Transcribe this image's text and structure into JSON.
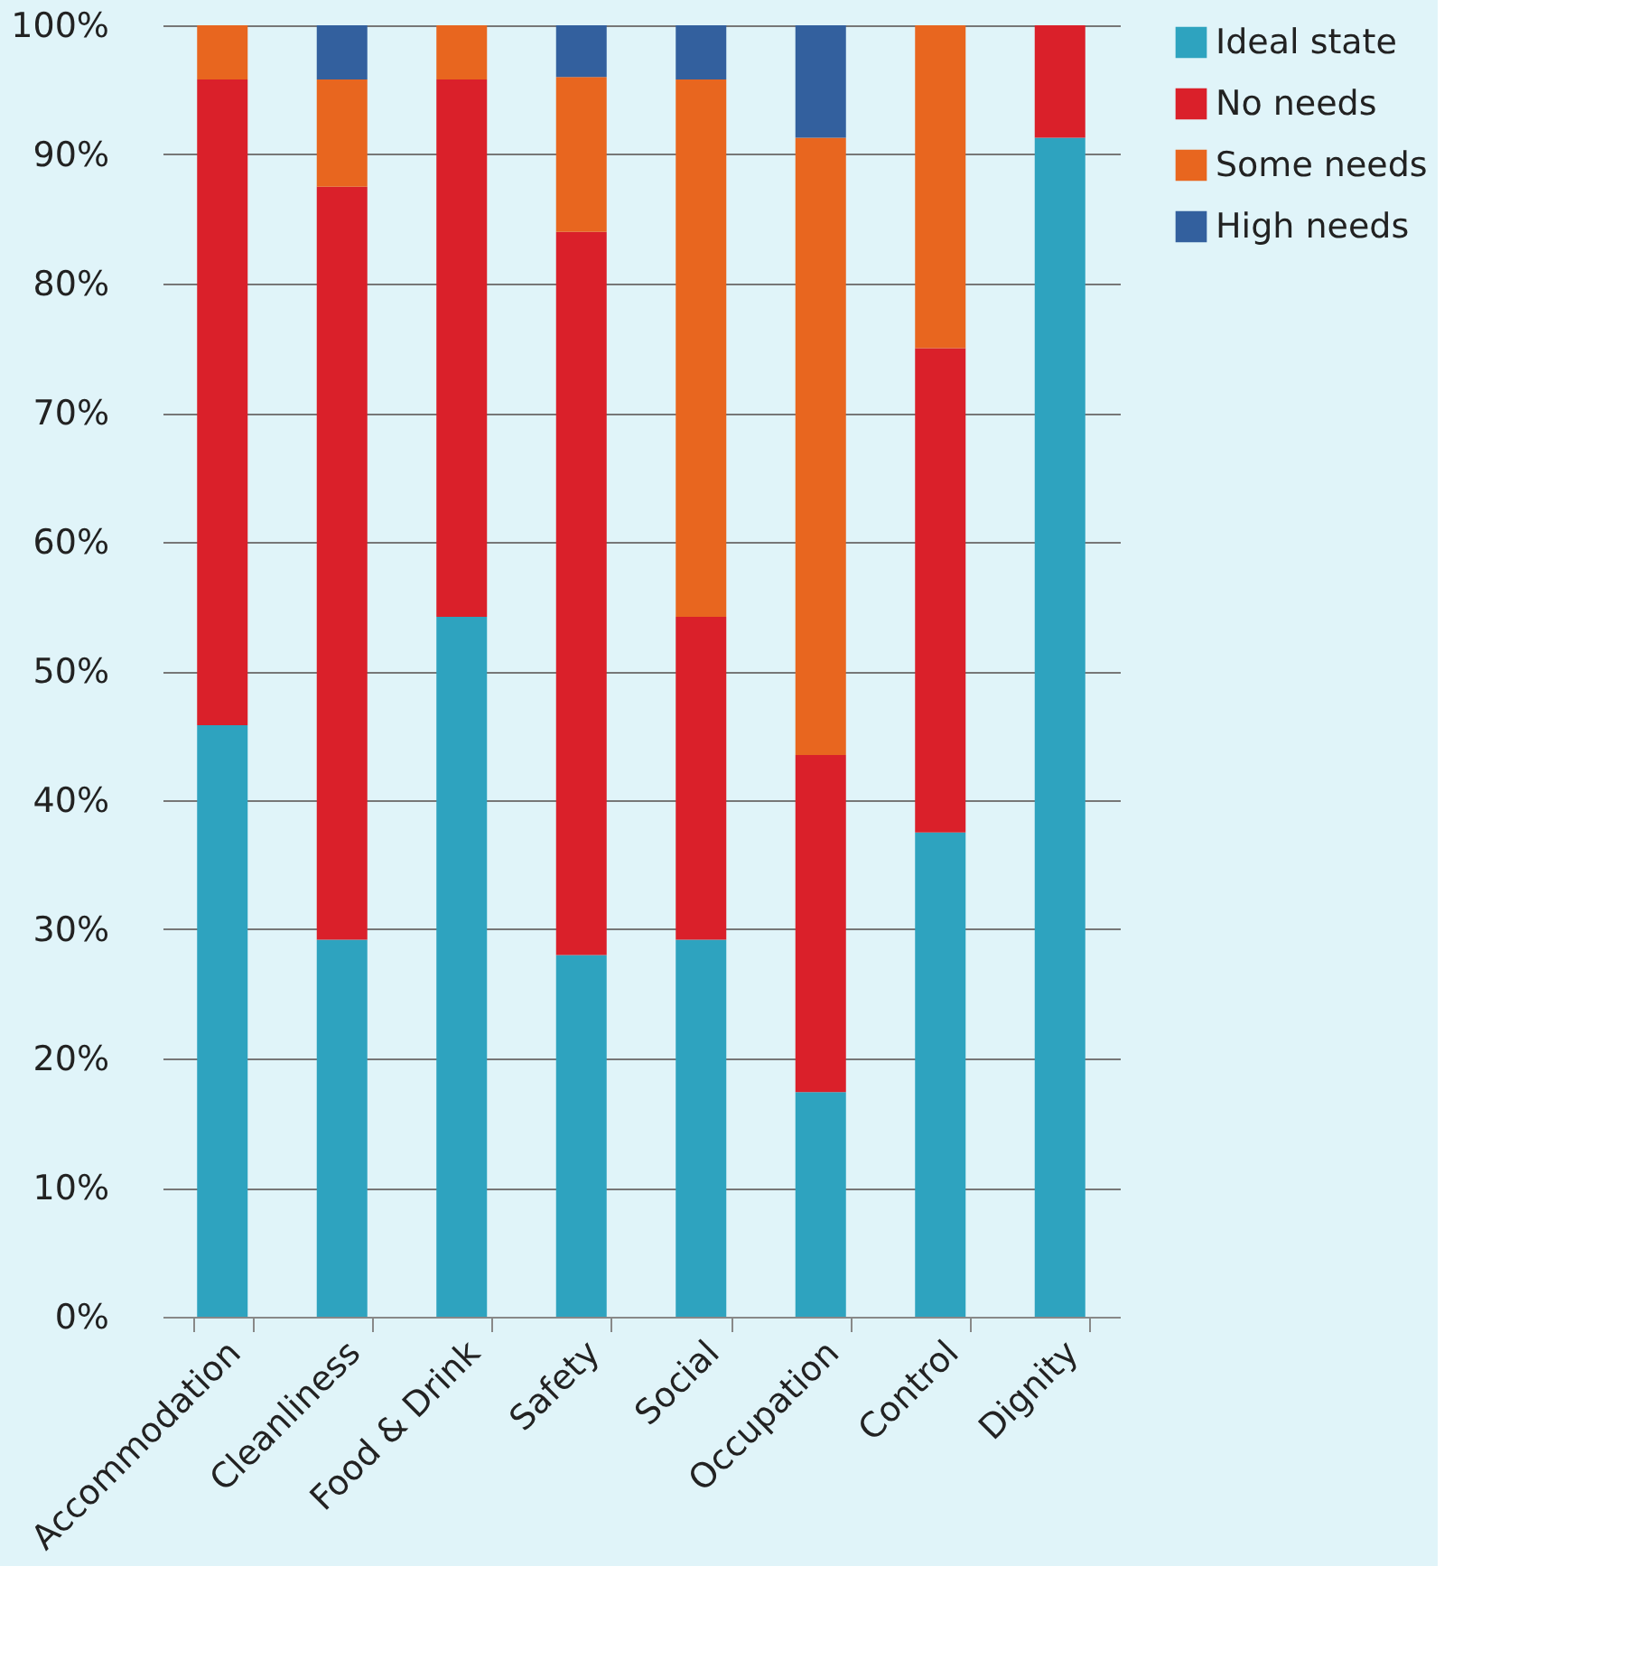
{
  "chart_data": {
    "type": "bar",
    "stacked": true,
    "categories": [
      "Accommodation",
      "Cleanliness",
      "Food & Drink",
      "Safety",
      "Social",
      "Occupation",
      "Control",
      "Dignity"
    ],
    "series": [
      {
        "name": "Ideal state",
        "color": "#2ea3bf",
        "values": [
          45.8,
          29.2,
          54.2,
          28,
          29.2,
          17.4,
          37.5,
          91.3
        ]
      },
      {
        "name": "No needs",
        "color": "#da202a",
        "values": [
          50,
          58.3,
          41.6,
          56,
          25,
          26.1,
          37.5,
          8.7
        ]
      },
      {
        "name": "Some needs",
        "color": "#e8661f",
        "values": [
          4.2,
          8.3,
          4.2,
          12,
          41.6,
          47.8,
          25,
          0
        ]
      },
      {
        "name": "High needs",
        "color": "#33609e",
        "values": [
          0,
          4.2,
          0,
          4,
          4.2,
          8.7,
          0,
          0
        ]
      }
    ],
    "ylim": [
      0,
      100
    ],
    "yticks": [
      {
        "value": 0,
        "label": "0%"
      },
      {
        "value": 10,
        "label": "10%"
      },
      {
        "value": 20,
        "label": "20%"
      },
      {
        "value": 30,
        "label": "30%"
      },
      {
        "value": 40,
        "label": "40%"
      },
      {
        "value": 50,
        "label": "50%"
      },
      {
        "value": 60,
        "label": "60%"
      },
      {
        "value": 70,
        "label": "70%"
      },
      {
        "value": 80,
        "label": "80%"
      },
      {
        "value": 90,
        "label": "90%"
      },
      {
        "value": 100,
        "label": "100%"
      }
    ],
    "grid": "y",
    "legend": "right"
  }
}
